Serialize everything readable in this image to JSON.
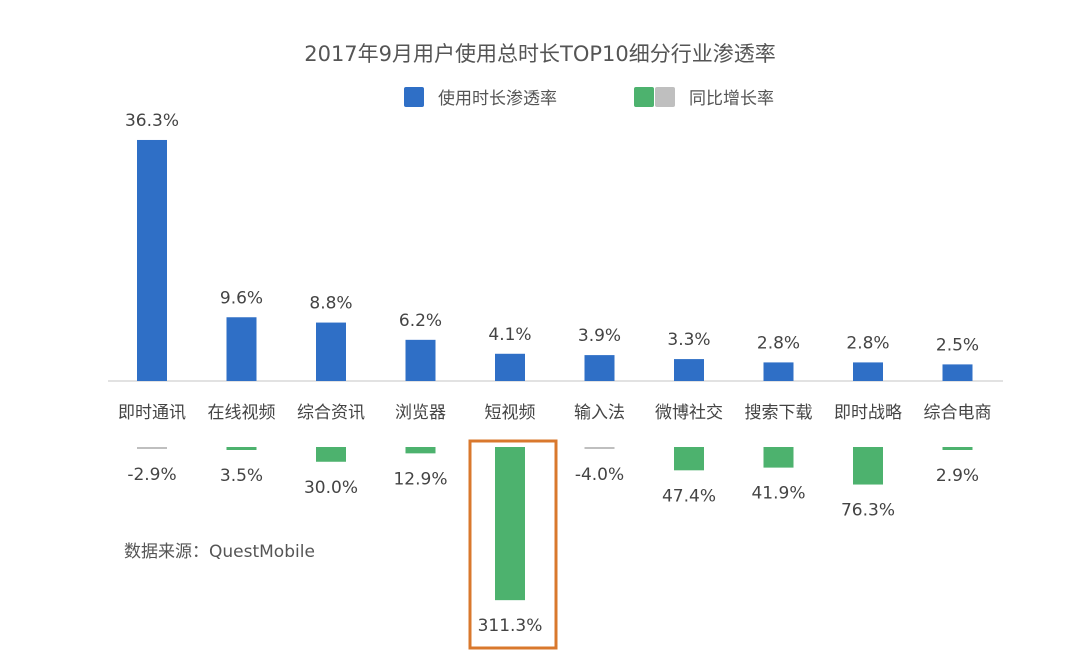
{
  "chart_data": {
    "type": "bar",
    "title": "2017年9月用户使用总时长TOP10细分行业渗透率",
    "categories": [
      "即时通讯",
      "在线视频",
      "综合资讯",
      "浏览器",
      "短视频",
      "输入法",
      "微博社交",
      "搜索下载",
      "即时战略",
      "综合电商"
    ],
    "series": [
      {
        "name": "使用时长渗透率",
        "values": [
          36.3,
          9.6,
          8.8,
          6.2,
          4.1,
          3.9,
          3.3,
          2.8,
          2.8,
          2.5
        ],
        "labels": [
          "36.3%",
          "9.6%",
          "8.8%",
          "6.2%",
          "4.1%",
          "3.9%",
          "3.3%",
          "2.8%",
          "2.8%",
          "2.5%"
        ],
        "color": "#2F6FC6"
      },
      {
        "name": "同比增长率",
        "values": [
          -2.9,
          3.5,
          30.0,
          12.9,
          311.3,
          -4.0,
          47.4,
          41.9,
          76.3,
          2.9
        ],
        "labels": [
          "-2.9%",
          "3.5%",
          "30.0%",
          "12.9%",
          "311.3%",
          "-4.0%",
          "47.4%",
          "41.9%",
          "76.3%",
          "2.9%"
        ],
        "color": "#4DB26E",
        "negative_color": "#BFBFBF"
      }
    ],
    "highlight": {
      "category": "短视频",
      "color": "#D9782D"
    },
    "legend": "top-center",
    "grid": false,
    "source": "数据来源：QuestMobile"
  }
}
